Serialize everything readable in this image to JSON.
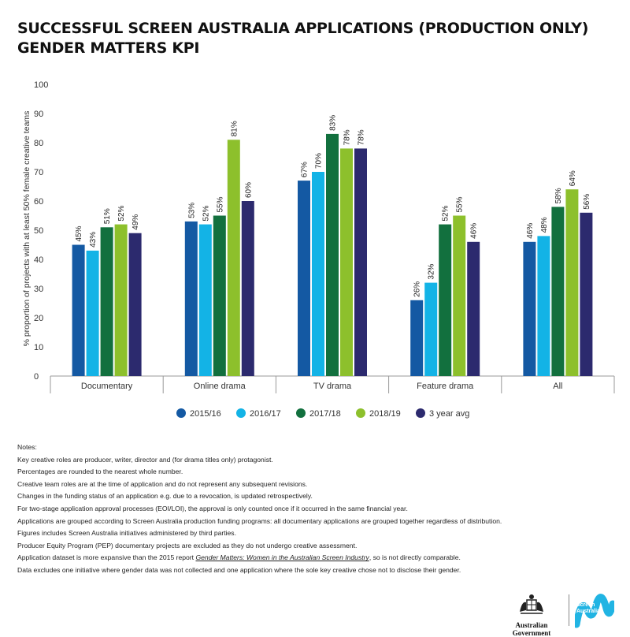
{
  "title_line1": "SUCCESSFUL SCREEN AUSTRALIA APPLICATIONS (PRODUCTION ONLY)",
  "title_line2": "GENDER MATTERS KPI",
  "chart_data": {
    "type": "bar",
    "ylabel": "% proportion of projects with at least 50% female creative teams",
    "xlabel": "",
    "ylim": [
      0,
      100
    ],
    "yticks": [
      0,
      10,
      20,
      30,
      40,
      50,
      60,
      70,
      80,
      90,
      100
    ],
    "categories": [
      "Documentary",
      "Online drama",
      "TV drama",
      "Feature drama",
      "All"
    ],
    "series": [
      {
        "name": "2015/16",
        "color": "#1459a3",
        "values": [
          45,
          53,
          67,
          26,
          46
        ],
        "labels": [
          "45%",
          "53%",
          "67%",
          "26%",
          "46%"
        ]
      },
      {
        "name": "2016/17",
        "color": "#13b3e6",
        "values": [
          43,
          52,
          70,
          32,
          48
        ],
        "labels": [
          "43%",
          "52%",
          "70%",
          "32%",
          "48%"
        ]
      },
      {
        "name": "2017/18",
        "color": "#12703e",
        "values": [
          51,
          55,
          83,
          52,
          58
        ],
        "labels": [
          "51%",
          "55%",
          "83%",
          "52%",
          "58%"
        ]
      },
      {
        "name": "2018/19",
        "color": "#8dc02c",
        "values": [
          52,
          81,
          78,
          55,
          64
        ],
        "labels": [
          "52%",
          "81%",
          "78%",
          "55%",
          "64%"
        ]
      },
      {
        "name": "3 year avg",
        "color": "#2c2a6e",
        "values": [
          49,
          60,
          78,
          46,
          56
        ],
        "labels": [
          "49%",
          "60%",
          "78%",
          "46%",
          "56%"
        ]
      }
    ],
    "legend_position": "bottom"
  },
  "notes": {
    "heading": "Notes:",
    "lines": [
      "Key creative roles are producer, writer, director and (for drama titles only) protagonist.",
      "Percentages are rounded to the nearest whole number.",
      "Creative team roles are at the time of application and do not represent any subsequent revisions.",
      "Changes in the funding status of an application e.g. due to a revocation, is updated retrospectively.",
      "For two-stage application approval processes (EOI/LOI), the approval is only counted once if it occurred in the same financial year.",
      "Applications are grouped according to Screen Australia production funding programs: all documentary applications are grouped together regardless of distribution.",
      "Figures includes Screen Australia initiatives administered by third parties.",
      "Producer Equity Program (PEP) documentary projects are excluded as they do not undergo creative assessment."
    ],
    "dataset_prefix": "Application dataset is more expansive than the 2015 report ",
    "dataset_report": "Gender Matters: Women in the Australian Screen Industry",
    "dataset_suffix": ", so is not directly comparable.",
    "last_line": "Data excludes one initiative where gender data was not collected and one application where the sole key creative chose not to disclose their gender."
  },
  "footer": {
    "gov_label": "Australian Government",
    "sa_line1": "Screen",
    "sa_line2": "Australia"
  }
}
